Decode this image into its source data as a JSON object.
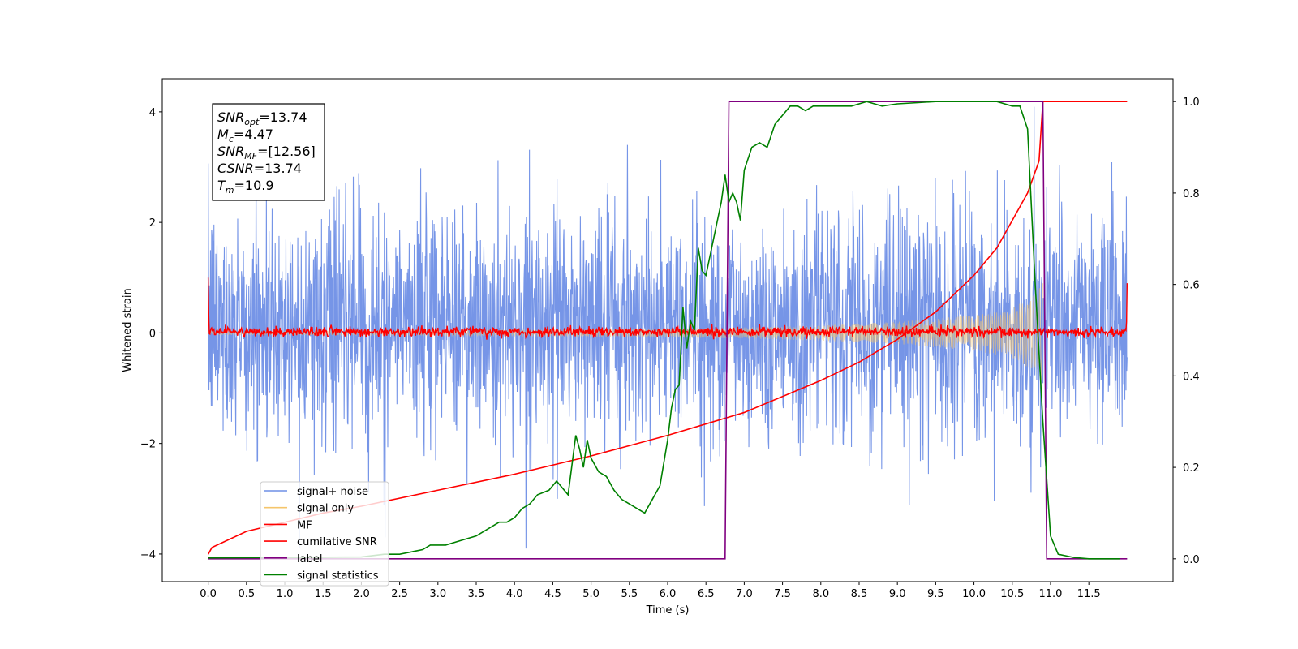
{
  "chart_data": {
    "type": "line",
    "xlabel": "Time (s)",
    "ylabel": "Whitened strain",
    "xlim": [
      -0.6,
      12.6
    ],
    "ylim_left": [
      -4.5,
      4.6
    ],
    "ylim_right": [
      -0.05,
      1.05
    ],
    "x_ticks": [
      "0.0",
      "0.5",
      "1.0",
      "1.5",
      "2.0",
      "2.5",
      "3.0",
      "3.5",
      "4.0",
      "4.5",
      "5.0",
      "5.5",
      "6.0",
      "6.5",
      "7.0",
      "7.5",
      "8.0",
      "8.5",
      "9.0",
      "9.5",
      "10.0",
      "10.5",
      "11.0",
      "11.5"
    ],
    "y_left_ticks": [
      "−4",
      "−2",
      "0",
      "2",
      "4"
    ],
    "y_right_ticks": [
      "0.0",
      "0.2",
      "0.4",
      "0.6",
      "0.8",
      "1.0"
    ],
    "info_box": [
      {
        "base": "SNR",
        "sub": "opt",
        "rest": "=13.74"
      },
      {
        "base": "M",
        "sub": "c",
        "rest": "=4.47"
      },
      {
        "base": "SNR",
        "sub": "MF",
        "rest": "=[12.56]"
      },
      {
        "base": "CSNR",
        "sub": "",
        "rest": "=13.74"
      },
      {
        "base": "T",
        "sub": "m",
        "rest": "=10.9"
      }
    ],
    "legend": [
      {
        "label": "signal+ noise",
        "color": "#6f8fe6"
      },
      {
        "label": "signal only",
        "color": "#f5c56b"
      },
      {
        "label": "MF",
        "color": "#ff0000"
      },
      {
        "label": "cumilative SNR",
        "color": "#ff0000"
      },
      {
        "label": "label",
        "color": "#800080"
      },
      {
        "label": "signal statistics",
        "color": "#008000"
      }
    ],
    "series": [
      {
        "name": "signal+ noise",
        "axis": "left",
        "color": "#6f8fe6",
        "description": "Gaussian-like whitened noise spanning about -2.5 to +2.8 (spikes to about ±4) from t=0 to t=12"
      },
      {
        "name": "signal only",
        "axis": "left",
        "color": "#f5c56b",
        "envelope": {
          "x": [
            0,
            2,
            4,
            6,
            7,
            8,
            9,
            10,
            10.5,
            10.8,
            10.9
          ],
          "amp": [
            0.03,
            0.04,
            0.05,
            0.08,
            0.1,
            0.14,
            0.2,
            0.32,
            0.45,
            0.7,
            0.9
          ]
        }
      },
      {
        "name": "MF",
        "axis": "left",
        "color": "#ff0000",
        "description": "Matched-filter output: noise around 0.02 with amplitude about ±0.1, spikes near 1.0 at t=0 and 0.9 at t=12"
      },
      {
        "name": "cumilative SNR",
        "axis": "right",
        "x": [
          0,
          0.05,
          0.5,
          1,
          1.5,
          2,
          3,
          4,
          5,
          6,
          7,
          8,
          8.5,
          9,
          9.5,
          10,
          10.3,
          10.5,
          10.7,
          10.85,
          10.9,
          11,
          12
        ],
        "y": [
          0.01,
          0.025,
          0.06,
          0.08,
          0.1,
          0.115,
          0.15,
          0.185,
          0.225,
          0.27,
          0.32,
          0.39,
          0.43,
          0.48,
          0.54,
          0.62,
          0.68,
          0.74,
          0.8,
          0.87,
          1.0,
          1.0,
          1.0
        ]
      },
      {
        "name": "label",
        "axis": "right",
        "x": [
          0,
          6.75,
          6.8,
          10.9,
          10.95,
          12
        ],
        "y": [
          0,
          0,
          1,
          1,
          0,
          0
        ]
      },
      {
        "name": "signal statistics",
        "axis": "right",
        "x": [
          0,
          1,
          2,
          2.3,
          2.5,
          2.8,
          2.9,
          3.1,
          3.3,
          3.5,
          3.7,
          3.8,
          3.9,
          4,
          4.1,
          4.2,
          4.3,
          4.45,
          4.55,
          4.7,
          4.8,
          4.85,
          4.9,
          4.95,
          5.0,
          5.1,
          5.2,
          5.3,
          5.4,
          5.5,
          5.6,
          5.7,
          5.8,
          5.9,
          6.0,
          6.05,
          6.1,
          6.15,
          6.2,
          6.25,
          6.3,
          6.35,
          6.4,
          6.45,
          6.5,
          6.6,
          6.7,
          6.75,
          6.8,
          6.85,
          6.9,
          6.95,
          7.0,
          7.1,
          7.2,
          7.3,
          7.4,
          7.5,
          7.6,
          7.7,
          7.8,
          7.9,
          8.0,
          8.2,
          8.4,
          8.6,
          8.8,
          9,
          9.5,
          10,
          10.3,
          10.5,
          10.6,
          10.7,
          10.8,
          10.9,
          11.0,
          11.1,
          11.3,
          11.5,
          11.9
        ],
        "y": [
          0.002,
          0.003,
          0.004,
          0.01,
          0.01,
          0.02,
          0.03,
          0.03,
          0.04,
          0.05,
          0.07,
          0.08,
          0.08,
          0.09,
          0.11,
          0.12,
          0.14,
          0.15,
          0.17,
          0.14,
          0.27,
          0.24,
          0.2,
          0.26,
          0.22,
          0.19,
          0.18,
          0.15,
          0.13,
          0.12,
          0.11,
          0.1,
          0.13,
          0.16,
          0.26,
          0.33,
          0.37,
          0.38,
          0.55,
          0.46,
          0.52,
          0.5,
          0.68,
          0.63,
          0.62,
          0.7,
          0.78,
          0.84,
          0.78,
          0.8,
          0.78,
          0.74,
          0.85,
          0.9,
          0.91,
          0.9,
          0.95,
          0.97,
          0.99,
          0.99,
          0.98,
          0.99,
          0.99,
          0.99,
          0.99,
          1.0,
          0.99,
          0.995,
          1.0,
          1.0,
          1.0,
          0.99,
          0.99,
          0.94,
          0.6,
          0.3,
          0.05,
          0.01,
          0.003,
          0.0,
          0.0
        ]
      }
    ]
  }
}
